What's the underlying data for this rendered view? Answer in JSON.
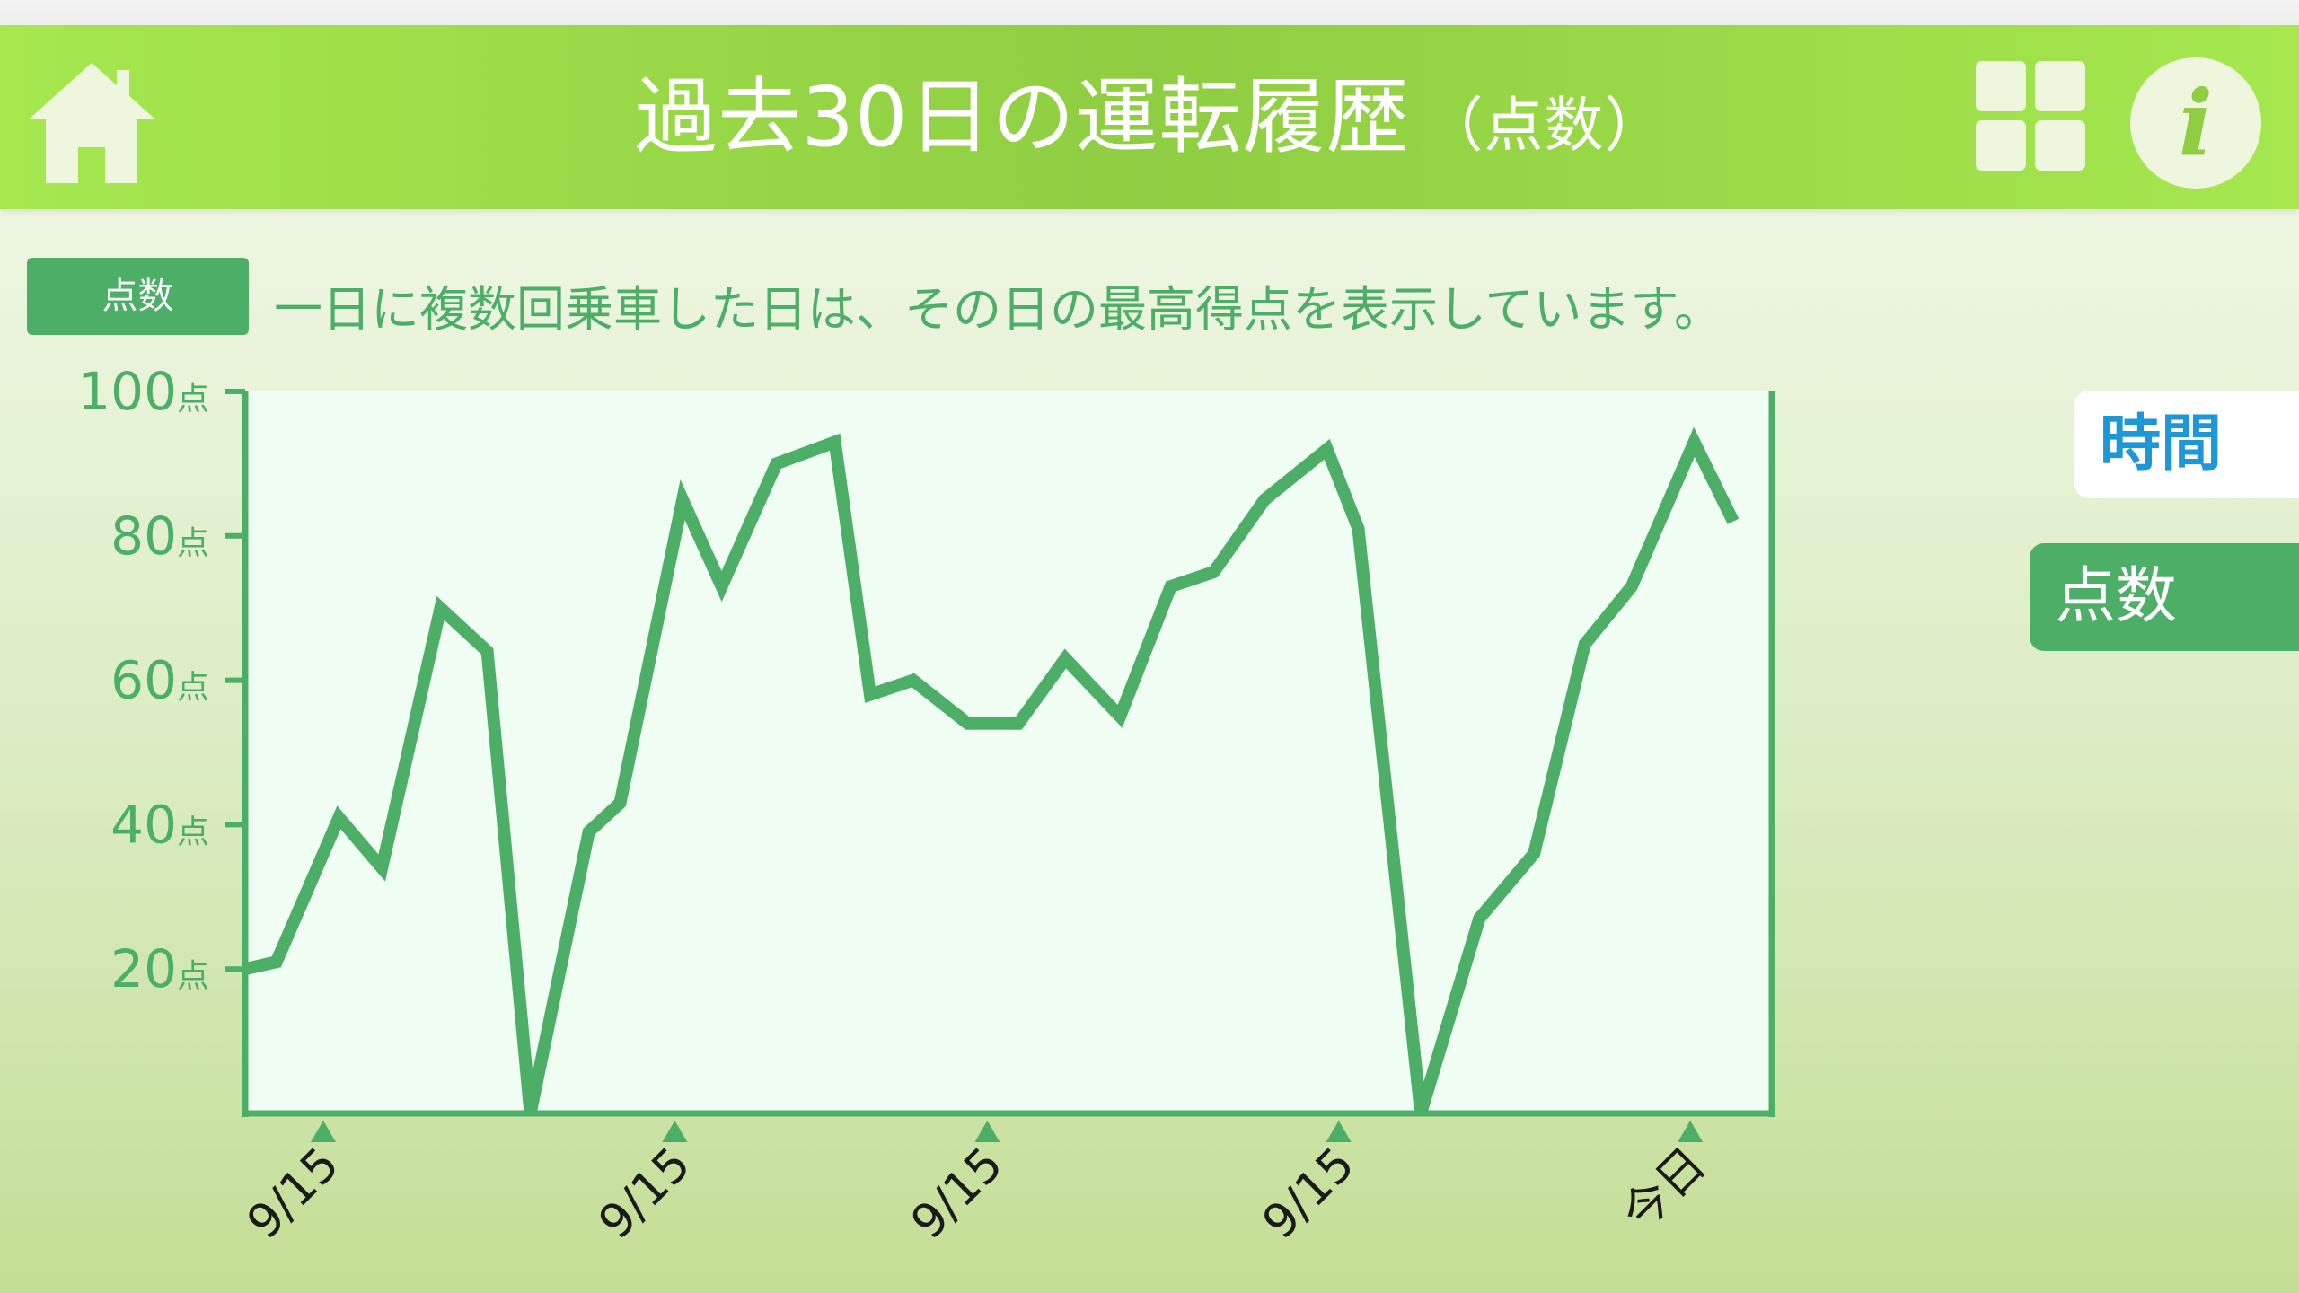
{
  "header": {
    "title": "過去30日の運転履歴",
    "subtitle": "（点数）",
    "home_icon": "home-icon",
    "menu_icon": "grid-icon",
    "info_icon": "info-icon",
    "info_glyph": "i"
  },
  "badge": {
    "label": "点数"
  },
  "note": "一日に複数回乗車した日は、その日の最高得点を表示しています。",
  "side_tabs": [
    {
      "label": "時間",
      "selected": false
    },
    {
      "label": "点数",
      "selected": true
    }
  ],
  "colors": {
    "accent": "#4daf67",
    "header": "#9ade4a",
    "tab_time_text": "#1e97d6",
    "plot_bg": "#f0fdf3"
  },
  "chart_data": {
    "type": "line",
    "y_unit": "点",
    "ylim": [
      0,
      100
    ],
    "y_ticks": [
      20,
      40,
      60,
      80,
      100
    ],
    "x_labels": [
      {
        "label": "9/15",
        "index": 2
      },
      {
        "label": "9/15",
        "index": 11
      },
      {
        "label": "9/15",
        "index": 19
      },
      {
        "label": "9/15",
        "index": 28
      },
      {
        "label": "今日",
        "index": 37
      }
    ],
    "series": [
      {
        "values": [
          20,
          21,
          41,
          34,
          70,
          64,
          0,
          39,
          43,
          85,
          73,
          90,
          93,
          58,
          60,
          54,
          54,
          63,
          55,
          73,
          75,
          85,
          92,
          81,
          0,
          27,
          36,
          65,
          73,
          93,
          82
        ]
      }
    ],
    "x_positions": [
      0,
      0.8,
      2.4,
      3.5,
      5.0,
      6.2,
      7.3,
      8.8,
      9.6,
      11.2,
      12.2,
      13.6,
      15.1,
      16.0,
      17.1,
      18.5,
      19.8,
      21.0,
      22.4,
      23.7,
      24.8,
      26.1,
      27.7,
      28.5,
      30.1,
      31.6,
      33.0,
      34.3,
      35.5,
      37.1,
      38.1
    ],
    "x_domain": [
      0,
      38.1
    ]
  }
}
